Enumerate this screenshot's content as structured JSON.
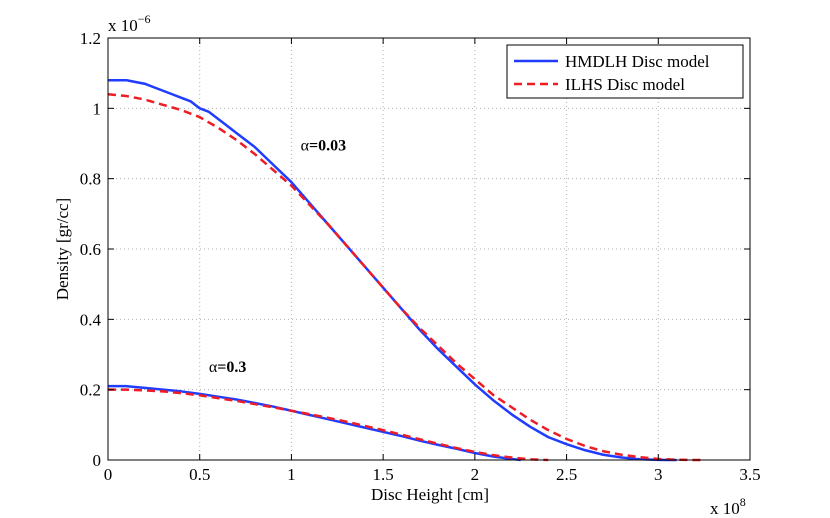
{
  "chart_data": {
    "type": "line",
    "xlabel": "Disc Height [cm]",
    "ylabel": "Density [gr/cc]",
    "xlim": [
      0,
      3.5
    ],
    "ylim": [
      0,
      1.2
    ],
    "x_exponent": "x 10",
    "x_exponent_power": "8",
    "y_exponent": "x 10",
    "y_exponent_power": "−6",
    "xticks": [
      0,
      0.5,
      1,
      1.5,
      2,
      2.5,
      3,
      3.5
    ],
    "xtick_labels": [
      "0",
      "0.5",
      "1",
      "1.5",
      "2",
      "2.5",
      "3",
      "3.5"
    ],
    "yticks": [
      0,
      0.2,
      0.4,
      0.6,
      0.8,
      1.0,
      1.2
    ],
    "ytick_labels": [
      "0",
      "0.2",
      "0.4",
      "0.6",
      "0.8",
      "1",
      "1.2"
    ],
    "grid": true,
    "legend_position": "top-right",
    "series": [
      {
        "name": "HMDLH Disc model",
        "color": "#1f3cff",
        "style": "solid",
        "group": "alpha=0.03",
        "x": [
          0,
          0.1,
          0.15,
          0.2,
          0.25,
          0.3,
          0.35,
          0.4,
          0.45,
          0.5,
          0.55,
          0.6,
          0.7,
          0.8,
          0.9,
          1.0,
          1.1,
          1.2,
          1.3,
          1.4,
          1.5,
          1.6,
          1.7,
          1.8,
          1.9,
          2.0,
          2.1,
          2.2,
          2.3,
          2.4,
          2.5,
          2.6,
          2.7,
          2.8,
          2.9,
          3.0,
          3.05,
          3.1
        ],
        "y": [
          1.08,
          1.08,
          1.075,
          1.07,
          1.06,
          1.05,
          1.04,
          1.03,
          1.02,
          1.0,
          0.99,
          0.97,
          0.93,
          0.89,
          0.84,
          0.79,
          0.73,
          0.67,
          0.61,
          0.55,
          0.49,
          0.43,
          0.37,
          0.315,
          0.265,
          0.215,
          0.17,
          0.13,
          0.095,
          0.065,
          0.045,
          0.028,
          0.015,
          0.007,
          0.002,
          0.0005,
          0.0,
          0.0
        ]
      },
      {
        "name": "ILHS Disc model",
        "color": "#ee1c25",
        "style": "dashed",
        "group": "alpha=0.03",
        "x": [
          0,
          0.1,
          0.2,
          0.3,
          0.4,
          0.5,
          0.6,
          0.7,
          0.8,
          0.9,
          1.0,
          1.1,
          1.2,
          1.3,
          1.4,
          1.5,
          1.6,
          1.7,
          1.8,
          1.9,
          2.0,
          2.1,
          2.2,
          2.3,
          2.4,
          2.5,
          2.6,
          2.7,
          2.8,
          2.9,
          3.0,
          3.1,
          3.2,
          3.25
        ],
        "y": [
          1.04,
          1.035,
          1.025,
          1.01,
          0.995,
          0.975,
          0.945,
          0.91,
          0.87,
          0.825,
          0.78,
          0.725,
          0.67,
          0.61,
          0.55,
          0.49,
          0.43,
          0.375,
          0.325,
          0.275,
          0.23,
          0.185,
          0.15,
          0.115,
          0.085,
          0.06,
          0.04,
          0.025,
          0.015,
          0.008,
          0.003,
          0.001,
          0.0,
          0.0
        ]
      },
      {
        "name": "HMDLH Disc model",
        "color": "#1f3cff",
        "style": "solid",
        "group": "alpha=0.3",
        "x": [
          0,
          0.1,
          0.2,
          0.3,
          0.4,
          0.5,
          0.6,
          0.7,
          0.8,
          0.9,
          1.0,
          1.1,
          1.2,
          1.3,
          1.4,
          1.5,
          1.6,
          1.7,
          1.8,
          1.9,
          2.0,
          2.1,
          2.2,
          2.25
        ],
        "y": [
          0.21,
          0.21,
          0.205,
          0.2,
          0.195,
          0.188,
          0.18,
          0.172,
          0.162,
          0.152,
          0.14,
          0.128,
          0.116,
          0.104,
          0.092,
          0.08,
          0.068,
          0.055,
          0.043,
          0.032,
          0.02,
          0.01,
          0.003,
          0.0
        ]
      },
      {
        "name": "ILHS Disc model",
        "color": "#ee1c25",
        "style": "dashed",
        "group": "alpha=0.3",
        "x": [
          0,
          0.1,
          0.2,
          0.3,
          0.4,
          0.5,
          0.6,
          0.7,
          0.8,
          0.9,
          1.0,
          1.1,
          1.2,
          1.3,
          1.4,
          1.5,
          1.6,
          1.7,
          1.8,
          1.9,
          2.0,
          2.1,
          2.2,
          2.3,
          2.4
        ],
        "y": [
          0.2,
          0.2,
          0.198,
          0.195,
          0.19,
          0.184,
          0.176,
          0.168,
          0.159,
          0.15,
          0.14,
          0.13,
          0.12,
          0.109,
          0.097,
          0.085,
          0.072,
          0.059,
          0.046,
          0.034,
          0.023,
          0.014,
          0.007,
          0.002,
          0.0
        ]
      }
    ],
    "legend": [
      {
        "label": "HMDLH Disc model",
        "color": "#1f3cff",
        "style": "solid"
      },
      {
        "label": "ILHS Disc model",
        "color": "#ee1c25",
        "style": "dashed"
      }
    ],
    "annotations": [
      {
        "symbol": "α",
        "text": "=0.03",
        "x": 1.05,
        "y": 0.88
      },
      {
        "symbol": "α",
        "text": "=0.3",
        "x": 0.55,
        "y": 0.25
      }
    ]
  }
}
